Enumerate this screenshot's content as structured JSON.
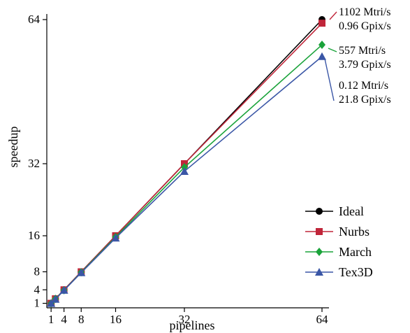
{
  "chart_data": {
    "type": "line",
    "title": "",
    "xlabel": "pipelines",
    "ylabel": "speedup",
    "xlim": [
      0,
      64
    ],
    "ylim": [
      0,
      64
    ],
    "xticks": [
      1,
      4,
      8,
      16,
      32,
      64
    ],
    "yticks": [
      1,
      4,
      8,
      16,
      32,
      64
    ],
    "grid": false,
    "legend_position": "bottom-right",
    "x": [
      1,
      2,
      4,
      8,
      16,
      32,
      64
    ],
    "series": [
      {
        "name": "Ideal",
        "color": "#000000",
        "marker": "circle",
        "values": [
          1,
          2,
          4,
          8,
          16,
          32,
          64
        ]
      },
      {
        "name": "Nurbs",
        "color": "#c0263a",
        "marker": "square",
        "values": [
          1,
          2,
          4,
          8,
          16,
          32,
          63.2
        ]
      },
      {
        "name": "March",
        "color": "#1aa33a",
        "marker": "diamond",
        "values": [
          1,
          2,
          3.9,
          7.9,
          15.7,
          31.2,
          58.4
        ]
      },
      {
        "name": "Tex3D",
        "color": "#3a56a6",
        "marker": "triangle",
        "values": [
          1,
          1.9,
          3.9,
          7.8,
          15.5,
          30.3,
          55.8
        ]
      }
    ],
    "annotations": [
      {
        "series": "Nurbs",
        "lines": [
          "1102 Mtri/s",
          "0.96 Gpix/s"
        ]
      },
      {
        "series": "March",
        "lines": [
          "557 Mtri/s",
          "3.79 Gpix/s"
        ]
      },
      {
        "series": "Tex3D",
        "lines": [
          "0.12 Mtri/s",
          "21.8 Gpix/s"
        ]
      }
    ]
  }
}
